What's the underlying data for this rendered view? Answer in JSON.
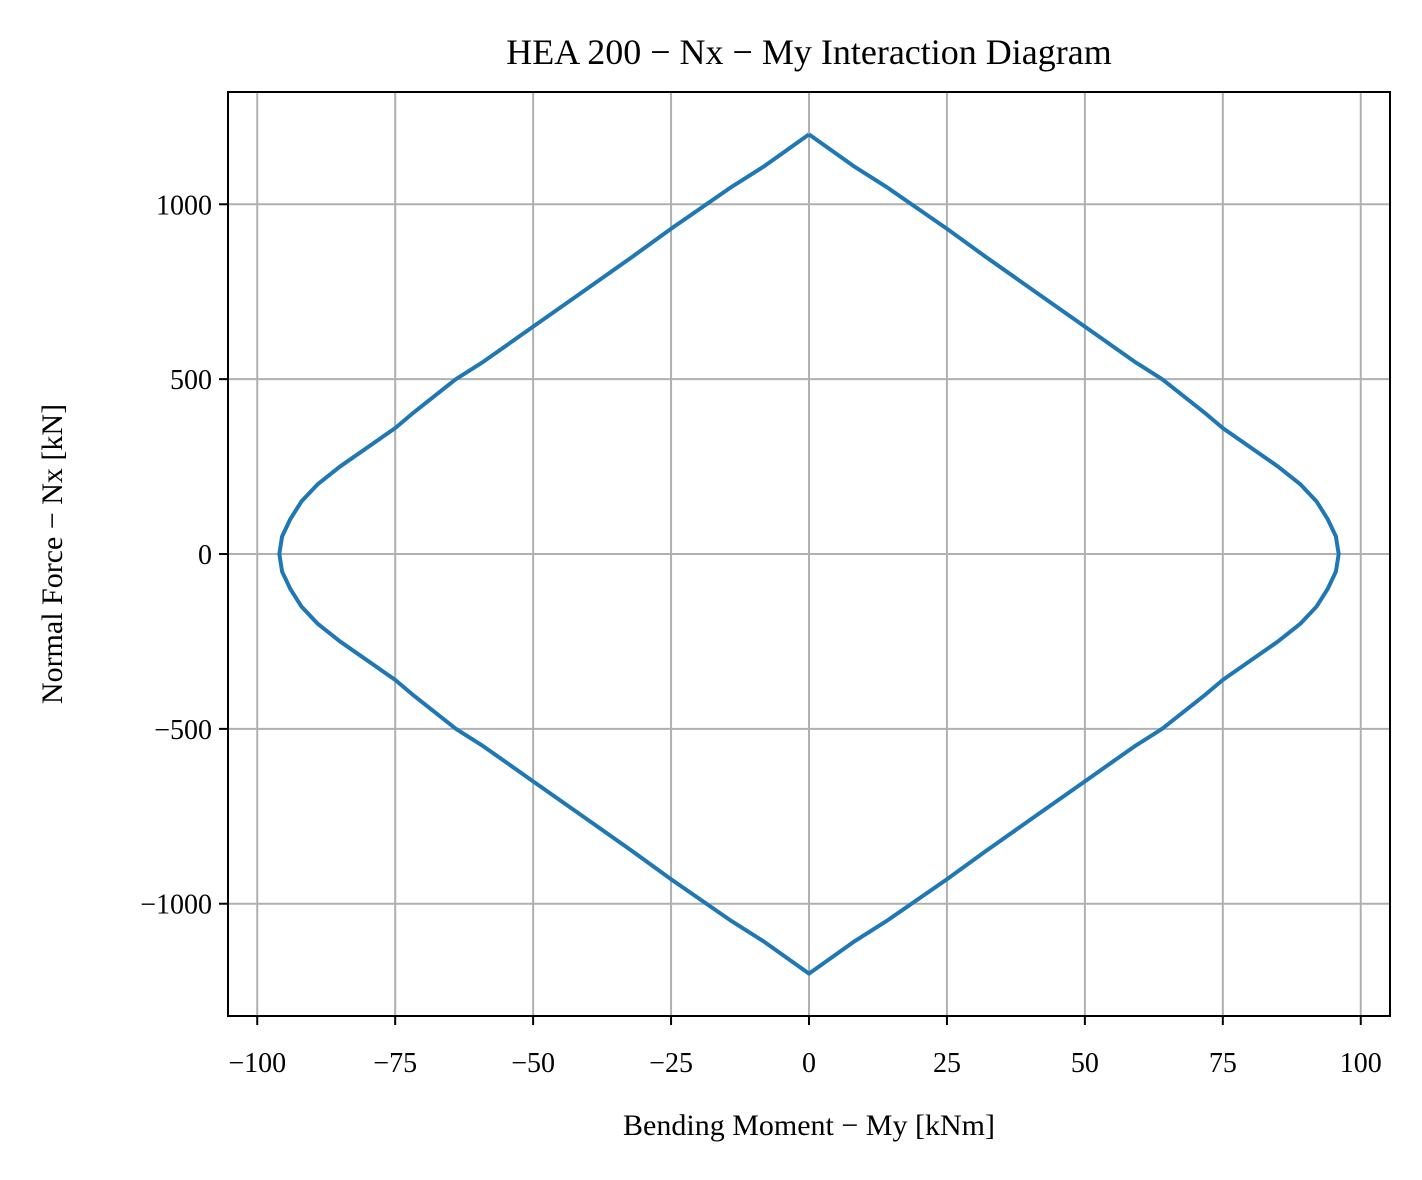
{
  "chart_data": {
    "type": "line",
    "title": "HEA 200 − Nx − My Interaction Diagram",
    "xlabel": "Bending Moment − My [kNm]",
    "ylabel": "Normal Force − Nx [kN]",
    "x": [
      0,
      8,
      14,
      25,
      32,
      41,
      50,
      59,
      64,
      72,
      75,
      85,
      89,
      92,
      94,
      95.5,
      96,
      95.5,
      94,
      92,
      89,
      85,
      75,
      72,
      64,
      59,
      50,
      41,
      32,
      25,
      14,
      8,
      0,
      -8,
      -14,
      -25,
      -32,
      -41,
      -50,
      -59,
      -64,
      -72,
      -75,
      -85,
      -89,
      -92,
      -94,
      -95.5,
      -96,
      -95.5,
      -94,
      -92,
      -89,
      -85,
      -75,
      -72,
      -64,
      -59,
      -50,
      -41,
      -32,
      -25,
      -14,
      -8,
      0
    ],
    "series": [
      {
        "name": "HEA 200",
        "color": "#1f77b4",
        "values": [
          1200,
          1110,
          1050,
          930,
          850,
          750,
          650,
          550,
          500,
          400,
          360,
          250,
          200,
          150,
          100,
          50,
          0,
          -50,
          -100,
          -150,
          -200,
          -250,
          -360,
          -400,
          -500,
          -550,
          -650,
          -750,
          -850,
          -930,
          -1050,
          -1110,
          -1200,
          -1110,
          -1050,
          -930,
          -850,
          -750,
          -650,
          -550,
          -500,
          -400,
          -360,
          -250,
          -200,
          -150,
          -100,
          -50,
          0,
          50,
          100,
          150,
          200,
          250,
          360,
          400,
          500,
          550,
          650,
          750,
          850,
          930,
          1050,
          1110,
          1200
        ]
      }
    ],
    "xlim": [
      -105.3,
      105.3
    ],
    "ylim": [
      -1321,
      1321
    ],
    "xticks": [
      {
        "value": -100,
        "label": "−100"
      },
      {
        "value": -75,
        "label": "−75"
      },
      {
        "value": -50,
        "label": "−50"
      },
      {
        "value": -25,
        "label": "−25"
      },
      0,
      25,
      50,
      75,
      100
    ],
    "yticks": [
      {
        "value": -1000,
        "label": "−1000"
      },
      {
        "value": -500,
        "label": "−500"
      },
      0,
      500,
      1000
    ],
    "grid": true
  }
}
